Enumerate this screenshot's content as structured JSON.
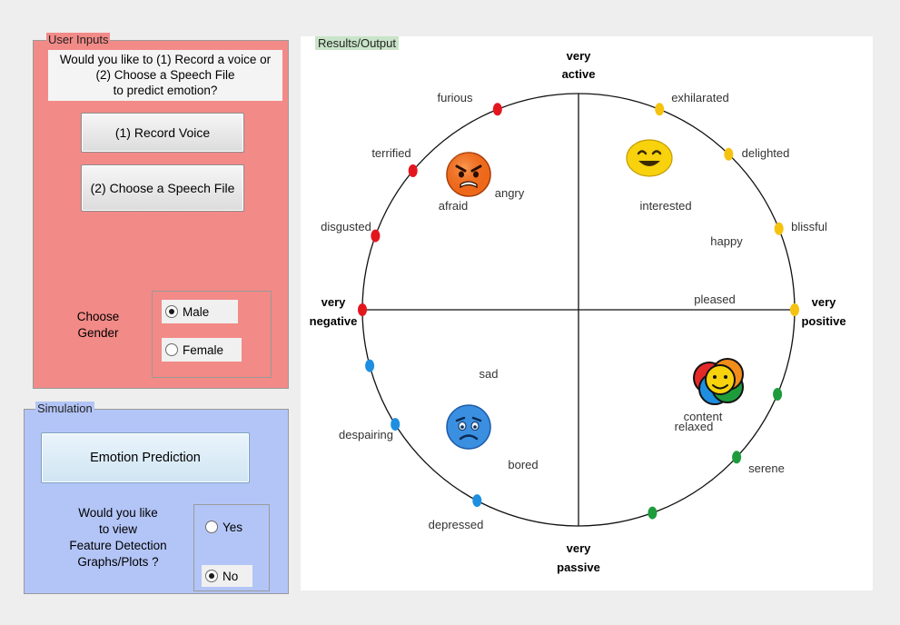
{
  "user_inputs": {
    "title": "User Inputs",
    "question_line1": "Would you like to (1) Record a voice or",
    "question_line2": "(2) Choose a Speech File",
    "question_line3": "to predict emotion?",
    "record_button": "(1) Record Voice",
    "choose_button": "(2) Choose a Speech File",
    "gender_label_line1": "Choose",
    "gender_label_line2": "Gender",
    "gender_options": [
      {
        "label": "Male",
        "selected": true
      },
      {
        "label": "Female",
        "selected": false
      }
    ]
  },
  "simulation": {
    "title": "Simulation",
    "predict_button": "Emotion Prediction",
    "question_line1": "Would you like",
    "question_line2": "to view",
    "question_line3": "Feature Detection",
    "question_line4": "Graphs/Plots ?",
    "plot_options": [
      {
        "label": "Yes",
        "selected": false
      },
      {
        "label": "No",
        "selected": true
      }
    ]
  },
  "results": {
    "title": "Results/Output",
    "axes": {
      "top_line1": "very",
      "top_line2": "active",
      "bottom_line1": "very",
      "bottom_line2": "passive",
      "left_line1": "very",
      "left_line2": "negative",
      "right_line1": "very",
      "right_line2": "positive"
    },
    "emotions": [
      {
        "label": "furious",
        "color": "#e3161e",
        "angle": 112
      },
      {
        "label": "terrified",
        "color": "#e3161e",
        "angle": 140
      },
      {
        "label": "disgusted",
        "color": "#e3161e",
        "angle": 160
      },
      {
        "label": "exhilarated",
        "color": "#f5c20f",
        "angle": 68
      },
      {
        "label": "delighted",
        "color": "#f5c20f",
        "angle": 46
      },
      {
        "label": "blissful",
        "color": "#f5c20f",
        "angle": 22
      },
      {
        "label": "despairing",
        "color": "#1e8fe0",
        "angle": 212
      },
      {
        "label": "depressed",
        "color": "#1e8fe0",
        "angle": 242
      },
      {
        "label": "serene",
        "color": "#1e9c3c",
        "angle": 317
      },
      {
        "label": "",
        "color": "#1e9c3c",
        "angle": 290
      },
      {
        "label": "",
        "color": "#1e9c3c",
        "angle": 337
      },
      {
        "label": "",
        "color": "#1e8fe0",
        "angle": 195
      },
      {
        "label": "",
        "color": "#e3161e",
        "angle": 180
      },
      {
        "label": "",
        "color": "#f5c20f",
        "angle": 0
      }
    ],
    "inner_labels": {
      "afraid": "afraid",
      "angry": "angry",
      "interested": "interested",
      "happy": "happy",
      "pleased": "pleased",
      "sad": "sad",
      "bored": "bored",
      "content": "content",
      "relaxed": "relaxed"
    },
    "faces": {
      "angry_face": "angry-face-icon",
      "happy_face": "happy-face-icon",
      "sad_face": "sad-face-icon",
      "content_face": "content-face-icon"
    }
  }
}
